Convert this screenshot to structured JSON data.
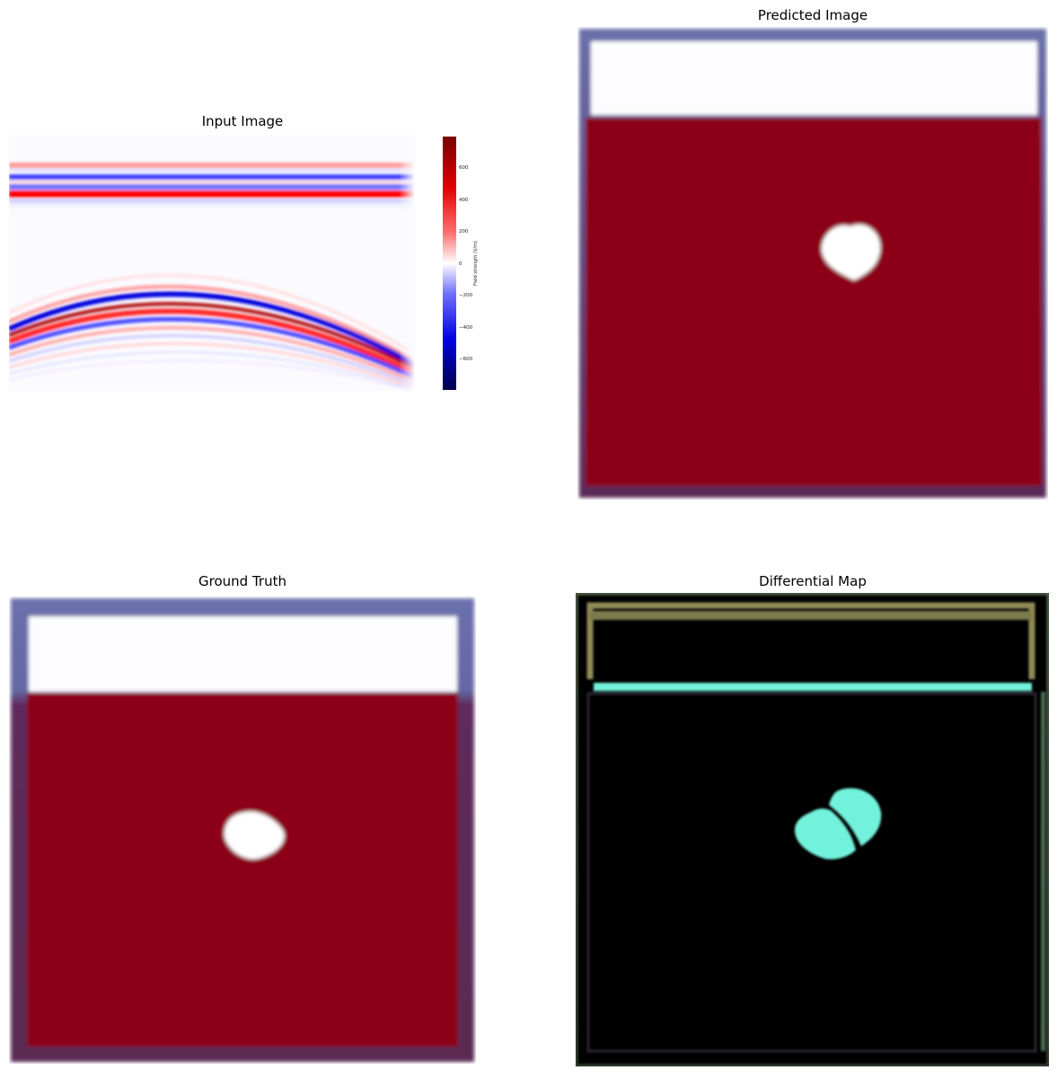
{
  "panels": {
    "input": {
      "title": "Input Image",
      "colorbar": {
        "label": "Field strength (V/m)",
        "ticks": [
          "600",
          "400",
          "200",
          "0",
          "−200",
          "−400",
          "−600"
        ],
        "colors": {
          "max": "#8b0000",
          "mid": "#ffffff",
          "min": "#00004d"
        }
      }
    },
    "predicted": {
      "title": "Predicted Image"
    },
    "ground_truth": {
      "title": "Ground Truth"
    },
    "differential": {
      "title": "Differential Map"
    }
  },
  "colors": {
    "domain_red": "#8b0019",
    "border_blue": "#6b6fa8",
    "border_purple": "#5c2752",
    "inclusion_white": "#ffffff",
    "diff_background": "#000000",
    "diff_cyan": "#72f2dc",
    "diff_olive": "#8f8a55"
  }
}
